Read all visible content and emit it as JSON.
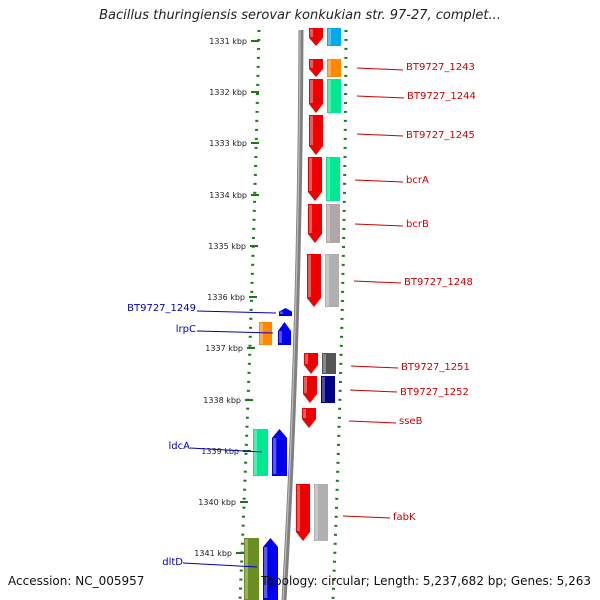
{
  "title": "Bacillus thuringiensis serovar konkukian str. 97-27, complet...",
  "footer": {
    "accession": "Accession: NC_005957",
    "stats": "Topology: circular; Length: 5,237,682 bp; Genes: 5,263"
  },
  "ticks": [
    "1331 kbp",
    "1332 kbp",
    "1333 kbp",
    "1334 kbp",
    "1335 kbp",
    "1336 kbp",
    "1337 kbp",
    "1338 kbp",
    "1339 kbp",
    "1340 kbp",
    "1341 kbp"
  ],
  "right_labels": [
    {
      "text": "BT9727_1243",
      "gene": 1
    },
    {
      "text": "BT9727_1244",
      "gene": 2
    },
    {
      "text": "BT9727_1245",
      "gene": 3
    },
    {
      "text": "bcrA",
      "gene": 4
    },
    {
      "text": "bcrB",
      "gene": 5
    },
    {
      "text": "BT9727_1248",
      "gene": 6
    },
    {
      "text": "BT9727_1251",
      "gene": 7
    },
    {
      "text": "BT9727_1252",
      "gene": 8
    },
    {
      "text": "sseB",
      "gene": 9
    },
    {
      "text": "fabK",
      "gene": 10
    }
  ],
  "left_labels": [
    {
      "text": "BT9727_1249",
      "gene": 11
    },
    {
      "text": "lrpC",
      "gene": 12
    },
    {
      "text": "ldcA",
      "gene": 13
    },
    {
      "text": "dltD",
      "gene": 14
    }
  ],
  "colors": {
    "label_red": "#cc0000",
    "label_blue": "#0000bb",
    "tick_green": "#1a7a1a",
    "gene_red": "#ee0000",
    "gene_blue": "#0000ee",
    "backbone": "#808080"
  },
  "genes": [
    {
      "id": 0,
      "strand": "reverse",
      "color": "#ee0000",
      "cog": "#00aaee"
    },
    {
      "id": 1,
      "strand": "reverse",
      "color": "#ee0000",
      "cog": "#ff8800"
    },
    {
      "id": 2,
      "strand": "reverse",
      "color": "#ee0000",
      "cog": "#00e890"
    },
    {
      "id": 3,
      "strand": "reverse",
      "color": "#ee0000",
      "cog": null
    },
    {
      "id": 4,
      "strand": "reverse",
      "color": "#ee0000",
      "cog": "#00e890"
    },
    {
      "id": 5,
      "strand": "reverse",
      "color": "#ee0000",
      "cog": "#b0a8a8"
    },
    {
      "id": 6,
      "strand": "reverse",
      "color": "#ee0000",
      "cog": "#b0b0b0"
    },
    {
      "id": 7,
      "strand": "reverse",
      "color": "#ee0000",
      "cog": "#555555"
    },
    {
      "id": 8,
      "strand": "reverse",
      "color": "#ee0000",
      "cog": "#000088"
    },
    {
      "id": 9,
      "strand": "reverse",
      "color": "#ee0000",
      "cog": null
    },
    {
      "id": 10,
      "strand": "reverse",
      "color": "#ee0000",
      "cog": "#b0b0b0"
    },
    {
      "id": 11,
      "strand": "forward",
      "color": "#0000ee",
      "cog": null
    },
    {
      "id": 12,
      "strand": "forward",
      "color": "#0000ee",
      "cog": "#ff8800"
    },
    {
      "id": 13,
      "strand": "forward",
      "color": "#0000ee",
      "cog": "#00e890"
    },
    {
      "id": 14,
      "strand": "forward",
      "color": "#0000ee",
      "cog": "#6b8e23"
    }
  ]
}
